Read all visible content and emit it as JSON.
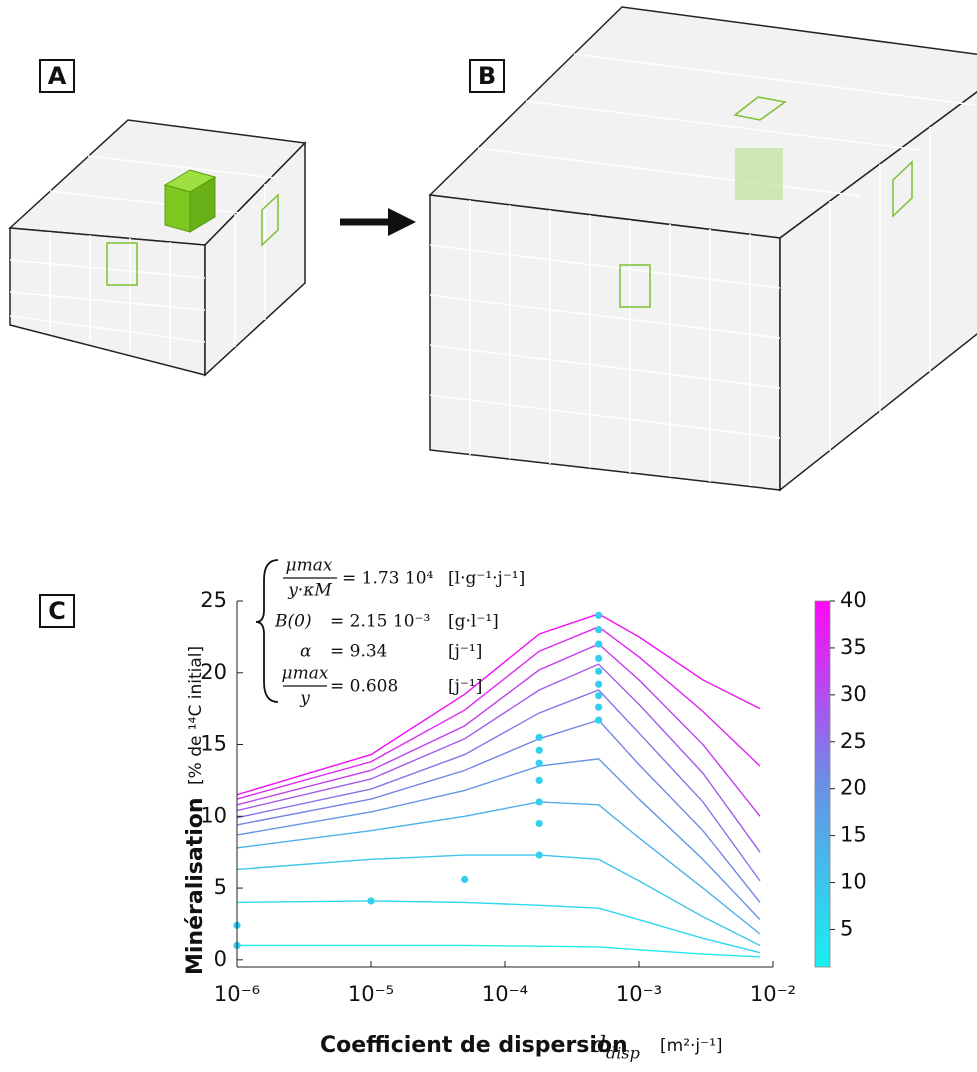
{
  "panels": [
    "A",
    "B",
    "C"
  ],
  "parameters": [
    {
      "numerator": "μmax",
      "denominator": "y·κM",
      "value": "= 1.73 10⁴",
      "unit": "[l·g⁻¹·j⁻¹]"
    },
    {
      "name": "B(0)",
      "value": "= 2.15 10⁻³",
      "unit": "[g·l⁻¹]"
    },
    {
      "name": "α",
      "value": "= 9.34",
      "unit": "[j⁻¹]"
    },
    {
      "numerator": "μmax",
      "denominator": "y",
      "value": "= 0.608",
      "unit": "[j⁻¹]"
    }
  ],
  "chart_data": {
    "type": "line",
    "xlabel": "Coefficient de dispersion",
    "xlabel_symbol": "d",
    "xlabel_sub": "disp",
    "xlabel_unit": "[m²·j⁻¹]",
    "ylabel": "Minéralisation",
    "ylabel_unit": "[% de ¹⁴C initial]",
    "xscale": "log",
    "xlim": [
      1e-06,
      0.01
    ],
    "xticks": [
      {
        "value": 1e-06,
        "label": "10⁻⁶"
      },
      {
        "value": 1e-05,
        "label": "10⁻⁵"
      },
      {
        "value": 0.0001,
        "label": "10⁻⁴"
      },
      {
        "value": 0.001,
        "label": "10⁻³"
      },
      {
        "value": 0.01,
        "label": "10⁻²"
      }
    ],
    "ylim": [
      -0.5,
      25
    ],
    "yticks": [
      0,
      5,
      10,
      15,
      20,
      25
    ],
    "x": [
      1e-06,
      1e-05,
      5e-05,
      0.00018,
      0.0005,
      0.001,
      0.003,
      0.008
    ],
    "series": [
      {
        "color": "#22e8ee",
        "values": [
          1.0,
          1.0,
          1.0,
          0.95,
          0.9,
          0.7,
          0.4,
          0.2
        ]
      },
      {
        "color": "#2ed8ee",
        "values": [
          4.0,
          4.1,
          4.0,
          3.8,
          3.6,
          2.8,
          1.5,
          0.5
        ]
      },
      {
        "color": "#3ec6ec",
        "values": [
          6.3,
          7.0,
          7.3,
          7.3,
          7.0,
          5.5,
          3.0,
          1.0
        ]
      },
      {
        "color": "#50b0ea",
        "values": [
          7.8,
          9.0,
          10.0,
          11.0,
          10.8,
          8.5,
          5.0,
          1.8
        ]
      },
      {
        "color": "#6496e6",
        "values": [
          8.7,
          10.3,
          11.8,
          13.5,
          14.0,
          11.2,
          7.0,
          2.8
        ]
      },
      {
        "color": "#7484e6",
        "values": [
          9.4,
          11.2,
          13.2,
          15.4,
          16.7,
          13.6,
          9.0,
          4.0
        ]
      },
      {
        "color": "#8a72e8",
        "values": [
          9.9,
          11.9,
          14.3,
          17.2,
          18.8,
          15.8,
          11.0,
          5.5
        ]
      },
      {
        "color": "#a45cea",
        "values": [
          10.4,
          12.6,
          15.4,
          18.8,
          20.6,
          17.8,
          13.0,
          7.5
        ]
      },
      {
        "color": "#c040ee",
        "values": [
          10.8,
          13.2,
          16.3,
          20.2,
          22.0,
          19.5,
          15.0,
          10.0
        ]
      },
      {
        "color": "#dc28f2",
        "values": [
          11.2,
          13.8,
          17.4,
          21.5,
          23.2,
          21.1,
          17.3,
          13.5
        ]
      },
      {
        "color": "#f010f4",
        "values": [
          11.5,
          14.3,
          18.5,
          22.7,
          24.1,
          22.5,
          19.5,
          17.5
        ]
      }
    ],
    "points": {
      "color": "#33cff0",
      "x": [
        1e-06,
        1e-06,
        1e-05,
        5e-05,
        0.00018,
        0.00018,
        0.00018,
        0.00018,
        0.00018,
        0.00018,
        0.00018,
        0.0005,
        0.0005,
        0.0005,
        0.0005,
        0.0005,
        0.0005,
        0.0005,
        0.0005,
        0.0005
      ],
      "y": [
        1.0,
        2.4,
        4.1,
        5.6,
        7.3,
        9.5,
        11.0,
        12.5,
        13.7,
        14.6,
        15.5,
        16.7,
        17.6,
        18.4,
        19.2,
        20.1,
        21.0,
        22.0,
        23.0,
        24.0
      ]
    },
    "colorbar": {
      "clim": [
        1,
        40
      ],
      "ticks": [
        5,
        10,
        15,
        20,
        25,
        30,
        35,
        40
      ],
      "colormap": [
        "#18f0f0",
        "#6a8fe6",
        "#ff08f8"
      ]
    }
  }
}
